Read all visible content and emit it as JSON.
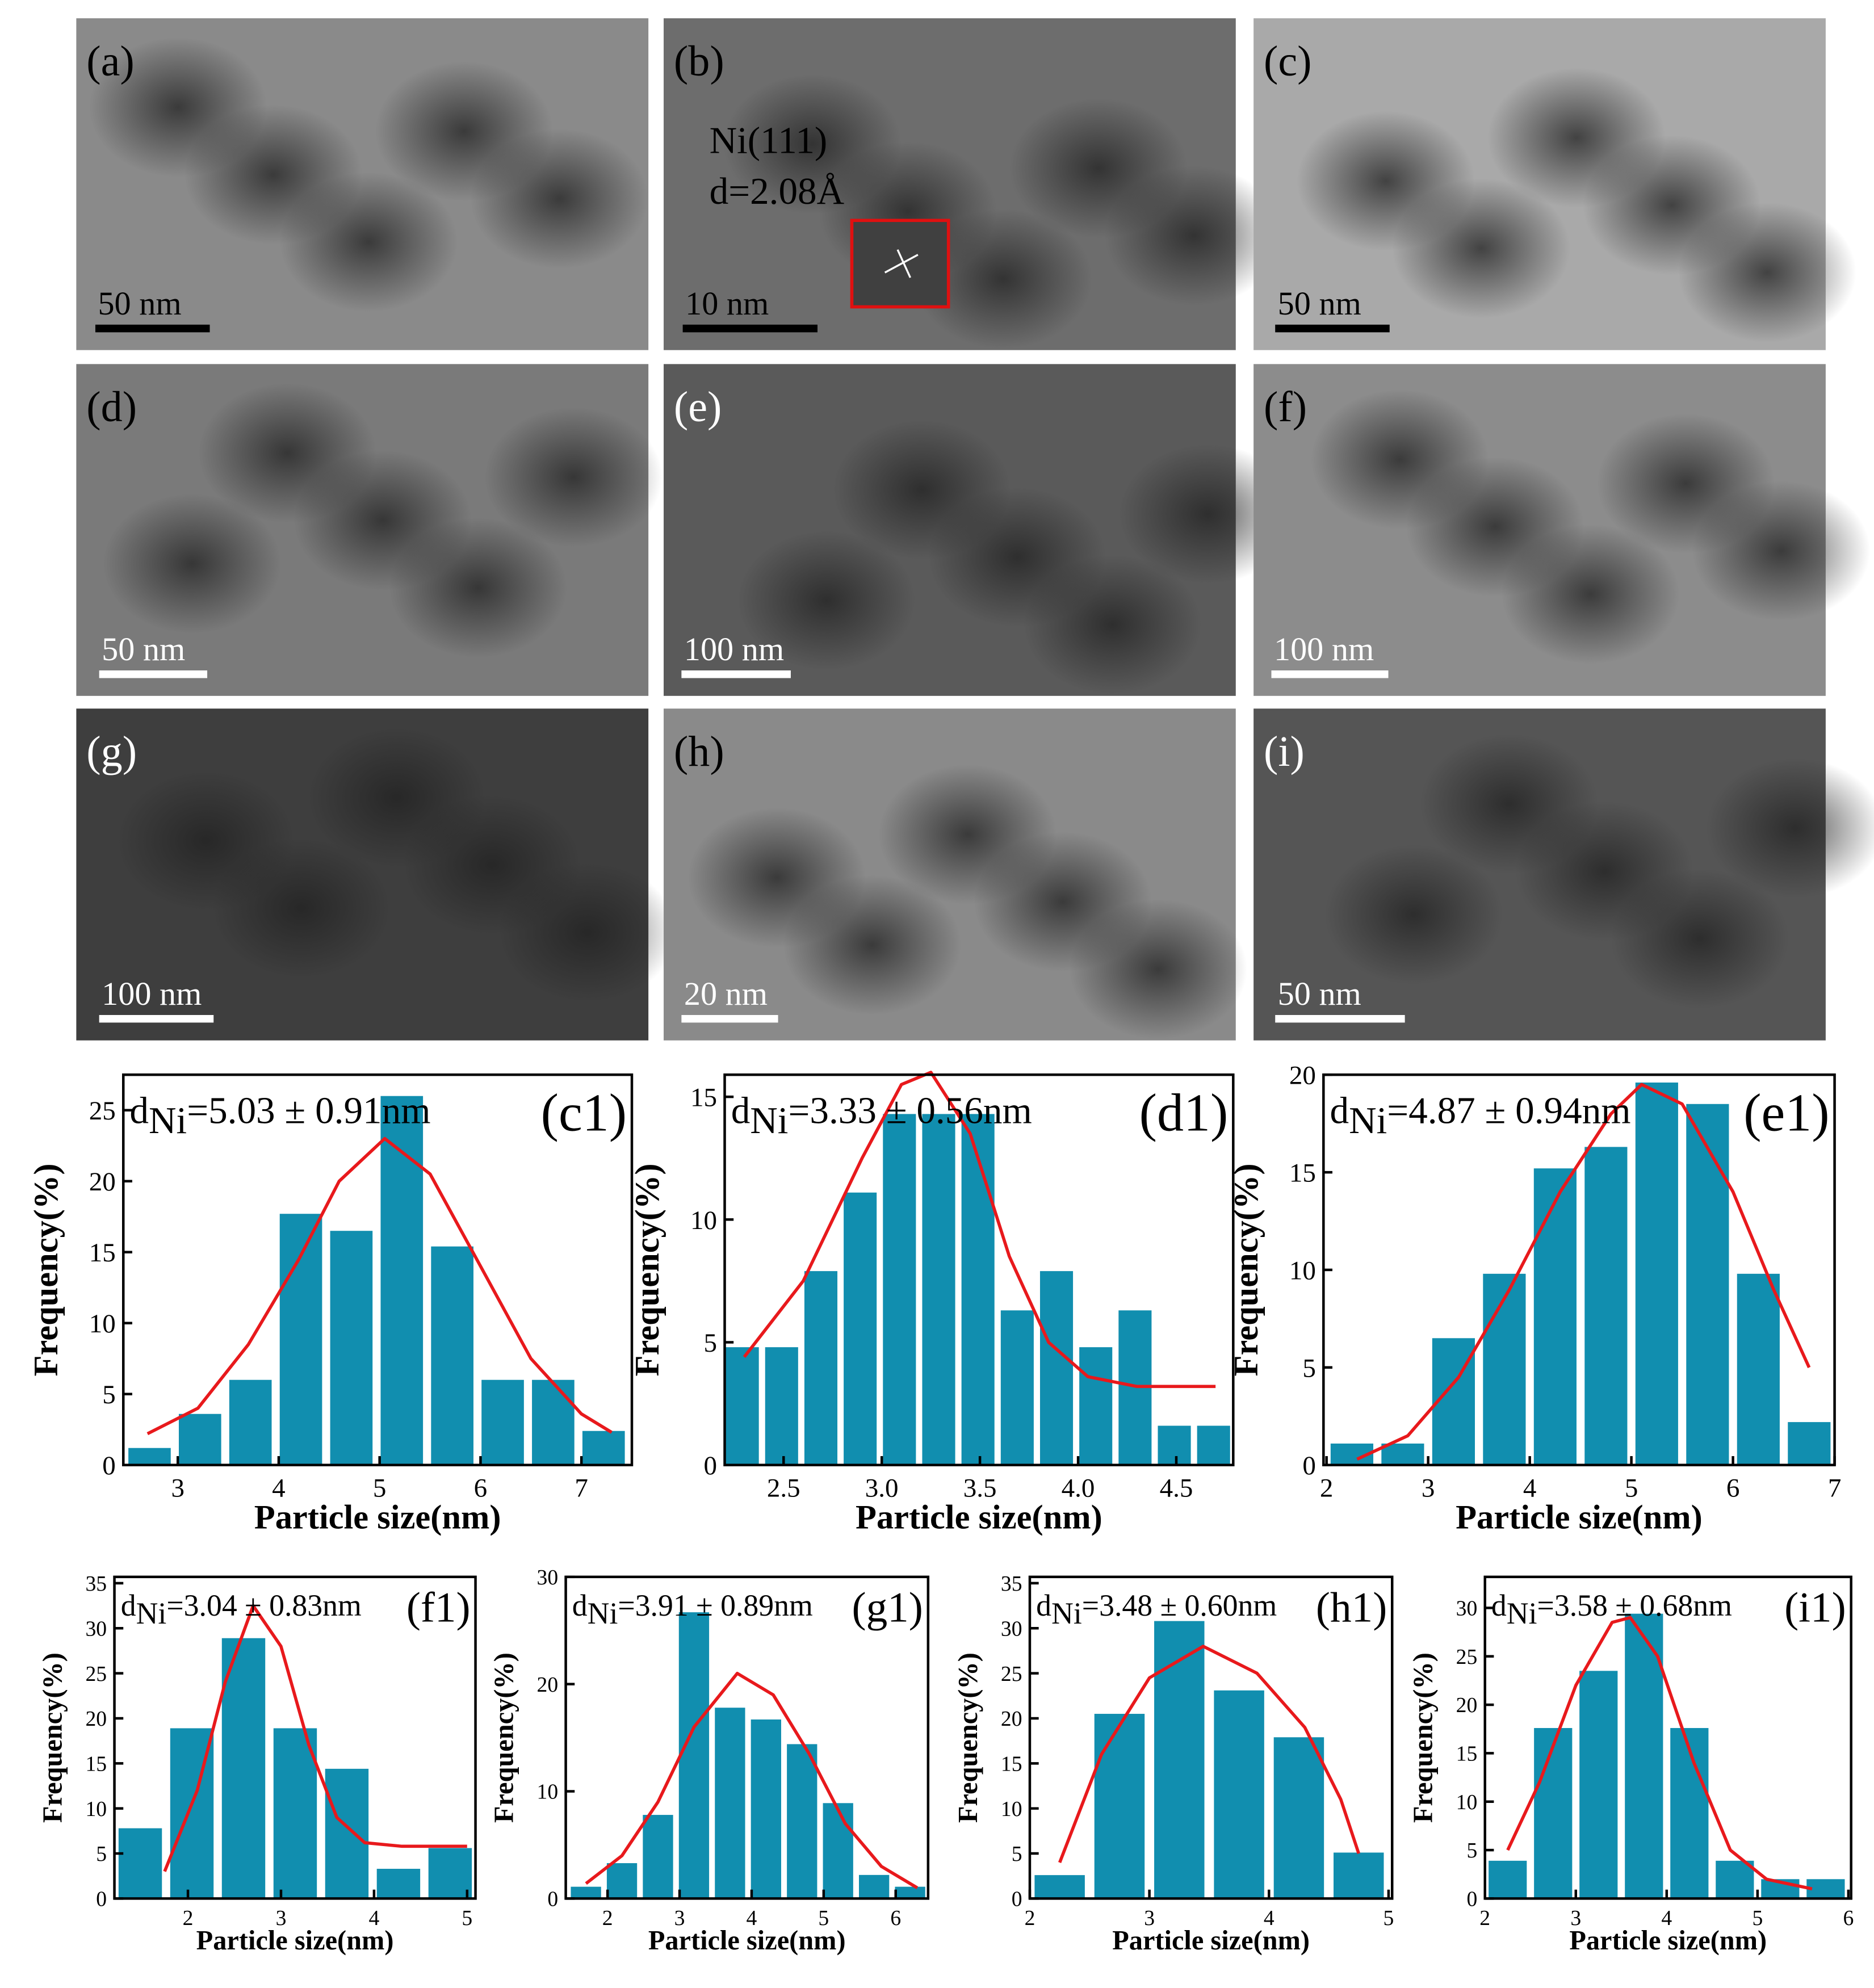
{
  "images": [
    {
      "label": "(a)",
      "scale_bar": "50 nm",
      "bar_color": "#000000"
    },
    {
      "label": "(b)",
      "scale_bar": "10 nm",
      "bar_color": "#000000",
      "annotation": [
        "Ni(111)",
        "d=2.08Å"
      ]
    },
    {
      "label": "(c)",
      "scale_bar": "50 nm",
      "bar_color": "#000000"
    },
    {
      "label": "(d)",
      "scale_bar": "50 nm",
      "bar_color": "#ffffff"
    },
    {
      "label": "(e)",
      "scale_bar": "100 nm",
      "bar_color": "#ffffff"
    },
    {
      "label": "(f)",
      "scale_bar": "100 nm",
      "bar_color": "#ffffff"
    },
    {
      "label": "(g)",
      "scale_bar": "100 nm",
      "bar_color": "#ffffff"
    },
    {
      "label": "(h)",
      "scale_bar": "20 nm",
      "bar_color": "#ffffff"
    },
    {
      "label": "(i)",
      "scale_bar": "50 nm",
      "bar_color": "#ffffff"
    }
  ],
  "chart_data": [
    {
      "type": "histogram",
      "panel_label": "(c1)",
      "annotation_prefix": "d",
      "annotation_subscript": "Ni",
      "annotation": "=5.03 ± 0.91nm",
      "xlabel": "Particle size(nm)",
      "ylabel": "Frequency(%)",
      "color": "#118eaf",
      "bins": [
        2.47,
        2.97,
        3.47,
        3.97,
        4.47,
        4.97,
        5.47,
        5.97,
        6.47,
        6.97,
        7.47
      ],
      "values": [
        1.2,
        3.6,
        6.0,
        17.7,
        16.5,
        26.0,
        15.4,
        6.0,
        6.0,
        2.4
      ],
      "fit": {
        "color": "#e8191c",
        "x": [
          2.7,
          3.2,
          3.7,
          4.2,
          4.6,
          5.05,
          5.5,
          6.0,
          6.5,
          7.0,
          7.3
        ],
        "values": [
          2.2,
          4,
          8.5,
          14.5,
          20,
          23,
          20.5,
          14,
          7.5,
          3.6,
          2.3
        ]
      },
      "xlim": [
        2.46,
        7.5
      ],
      "ylim": [
        0,
        27.5
      ],
      "xticks": [
        3,
        4,
        5,
        6,
        7
      ],
      "yticks": [
        0,
        5,
        10,
        15,
        20,
        25
      ]
    },
    {
      "type": "histogram",
      "panel_label": "(d1)",
      "annotation_prefix": "d",
      "annotation_subscript": "Ni",
      "annotation": "=3.33 ± 0.56nm",
      "xlabel": "Particle size(nm)",
      "ylabel": "Frequency(%)",
      "color": "#118eaf",
      "bins": [
        2.19,
        2.39,
        2.59,
        2.79,
        2.99,
        3.19,
        3.39,
        3.59,
        3.79,
        3.99,
        4.19,
        4.39,
        4.59,
        4.79
      ],
      "values": [
        4.8,
        4.8,
        7.9,
        11.1,
        14.3,
        14.3,
        14.3,
        6.3,
        7.9,
        4.8,
        6.3,
        1.6,
        1.6
      ],
      "fit": {
        "color": "#e8191c",
        "x": [
          2.3,
          2.6,
          2.9,
          3.1,
          3.25,
          3.45,
          3.65,
          3.85,
          4.05,
          4.3,
          4.7
        ],
        "values": [
          4.4,
          7.5,
          12.5,
          15.5,
          16,
          13.5,
          8.5,
          5,
          3.6,
          3.2,
          3.2
        ]
      },
      "xlim": [
        2.2,
        4.79
      ],
      "ylim": [
        0,
        15.9
      ],
      "xticks": [
        2.5,
        {
          "value": 3,
          "label": "3.0"
        },
        3.5,
        {
          "value": 4,
          "label": "4.0"
        },
        4.5
      ],
      "yticks": [
        0,
        5,
        10,
        15
      ]
    },
    {
      "type": "histogram",
      "panel_label": "(e1)",
      "annotation_prefix": "d",
      "annotation_subscript": "Ni",
      "annotation": "=4.87 ± 0.94nm",
      "xlabel": "Particle size(nm)",
      "ylabel": "Frequency(%)",
      "color": "#118eaf",
      "bins": [
        2.0,
        2.5,
        3.0,
        3.5,
        4.0,
        4.5,
        5.0,
        5.5,
        6.0,
        6.5,
        7.0
      ],
      "values": [
        1.1,
        1.1,
        6.5,
        9.8,
        15.2,
        16.3,
        19.6,
        18.5,
        9.8,
        2.2
      ],
      "fit": {
        "color": "#e8191c",
        "x": [
          2.3,
          2.8,
          3.3,
          3.8,
          4.3,
          4.8,
          5.1,
          5.5,
          6.0,
          6.4,
          6.75
        ],
        "values": [
          0.3,
          1.5,
          4.5,
          9,
          14,
          18,
          19.5,
          18.5,
          14,
          9,
          5
        ]
      },
      "xlim": [
        1.97,
        7.0
      ],
      "ylim": [
        0,
        20
      ],
      "xticks": [
        2,
        3,
        4,
        5,
        6,
        7
      ],
      "yticks": [
        0,
        5,
        10,
        15,
        20
      ]
    },
    {
      "type": "histogram",
      "panel_label": "(f1)",
      "annotation_prefix": "d",
      "annotation_subscript": "Ni",
      "annotation": "=3.04 ± 0.83nm",
      "xlabel": "Particle size(nm)",
      "ylabel": "Frequency(%)",
      "color": "#118eaf",
      "bins": [
        1.21,
        1.765,
        2.32,
        2.875,
        3.43,
        3.985,
        4.54,
        5.095
      ],
      "values": [
        7.8,
        18.9,
        28.9,
        18.9,
        14.4,
        3.3,
        5.6
      ],
      "fit": {
        "color": "#e8191c",
        "x": [
          1.75,
          2.1,
          2.4,
          2.7,
          3.0,
          3.3,
          3.6,
          3.9,
          4.3,
          5.0
        ],
        "values": [
          3,
          12,
          24,
          32.5,
          28,
          17,
          9,
          6.2,
          5.8,
          5.8
        ]
      },
      "xlim": [
        1.21,
        5.09
      ],
      "ylim": [
        0,
        35.7
      ],
      "xticks": [
        2,
        3,
        4,
        5
      ],
      "yticks": [
        0,
        5,
        10,
        15,
        20,
        25,
        30,
        35
      ]
    },
    {
      "type": "histogram",
      "panel_label": "(g1)",
      "annotation_prefix": "d",
      "annotation_subscript": "Ni",
      "annotation": "=3.91 ± 0.89nm",
      "xlabel": "Particle size(nm)",
      "ylabel": "Frequency(%)",
      "color": "#118eaf",
      "bins": [
        1.45,
        1.95,
        2.45,
        2.95,
        3.45,
        3.95,
        4.45,
        4.95,
        5.45,
        5.95,
        6.45
      ],
      "values": [
        1.1,
        3.3,
        7.8,
        26.7,
        17.8,
        16.7,
        14.4,
        8.9,
        2.2,
        1.1
      ],
      "fit": {
        "color": "#e8191c",
        "x": [
          1.7,
          2.2,
          2.7,
          3.2,
          3.8,
          4.3,
          4.8,
          5.3,
          5.8,
          6.3
        ],
        "values": [
          1.4,
          4,
          9,
          16,
          21,
          19,
          13.5,
          7,
          3,
          1
        ]
      },
      "xlim": [
        1.42,
        6.45
      ],
      "ylim": [
        0,
        30
      ],
      "xticks": [
        2,
        3,
        4,
        5,
        6
      ],
      "yticks": [
        0,
        10,
        20,
        30
      ]
    },
    {
      "type": "histogram",
      "panel_label": "(h1)",
      "annotation_prefix": "d",
      "annotation_subscript": "Ni",
      "annotation": "=3.48 ± 0.60nm",
      "xlabel": "Particle size(nm)",
      "ylabel": "Frequency(%)",
      "color": "#118eaf",
      "bins": [
        2.0,
        2.5,
        3.0,
        3.5,
        4.0,
        4.5,
        5.0
      ],
      "values": [
        2.6,
        20.5,
        30.8,
        23.1,
        17.9,
        5.1
      ],
      "fit": {
        "color": "#e8191c",
        "x": [
          2.25,
          2.6,
          3.0,
          3.45,
          3.9,
          4.3,
          4.6,
          4.75
        ],
        "values": [
          4,
          16,
          24.5,
          28,
          25,
          19,
          11,
          5
        ]
      },
      "xlim": [
        2.0,
        5.03
      ],
      "ylim": [
        0,
        35.7
      ],
      "xticks": [
        2,
        3,
        4,
        5
      ],
      "yticks": [
        0,
        5,
        10,
        15,
        20,
        25,
        30,
        35
      ]
    },
    {
      "type": "histogram",
      "panel_label": "(i1)",
      "annotation_prefix": "d",
      "annotation_subscript": "Ni",
      "annotation": "=3.58 ± 0.68nm",
      "xlabel": "Particle size(nm)",
      "ylabel": "Frequency(%)",
      "color": "#118eaf",
      "bins": [
        2.0,
        2.5,
        3.0,
        3.5,
        4.0,
        4.5,
        5.0,
        5.5,
        6.0
      ],
      "values": [
        3.9,
        17.6,
        23.5,
        29.4,
        17.6,
        3.9,
        2.0,
        2.0
      ],
      "fit": {
        "color": "#e8191c",
        "x": [
          2.25,
          2.6,
          3.0,
          3.4,
          3.6,
          3.9,
          4.3,
          4.7,
          5.1,
          5.6
        ],
        "values": [
          5,
          12,
          22,
          28.5,
          29,
          25,
          14,
          5,
          2,
          1
        ]
      },
      "xlim": [
        2.0,
        6.03
      ],
      "ylim": [
        0,
        33.2
      ],
      "xticks": [
        2,
        3,
        4,
        5,
        6
      ],
      "yticks": [
        0,
        5,
        10,
        15,
        20,
        25,
        30
      ]
    }
  ]
}
